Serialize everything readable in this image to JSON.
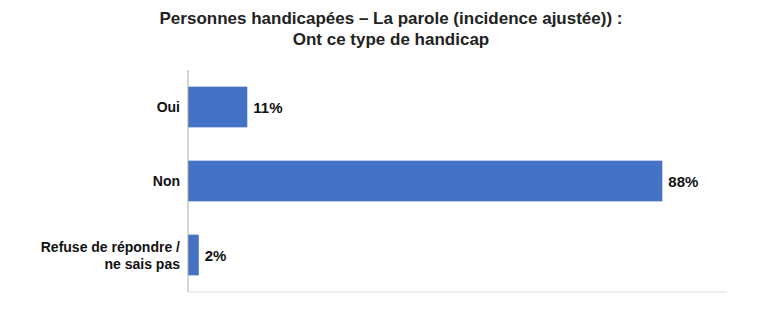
{
  "chart_data": {
    "type": "bar",
    "orientation": "horizontal",
    "title": "Personnes handicapées – La parole (incidence ajustée)) :\nOnt ce type de handicap",
    "categories": [
      "Oui",
      "Non",
      "Refuse de répondre /\nne sais pas"
    ],
    "values": [
      11,
      88,
      2
    ],
    "value_labels": [
      "11%",
      "88%",
      "2%"
    ],
    "data_labels": true,
    "color": "#4472C4",
    "xlim": [
      0,
      100
    ],
    "tick_labels": "y",
    "grid": false
  }
}
